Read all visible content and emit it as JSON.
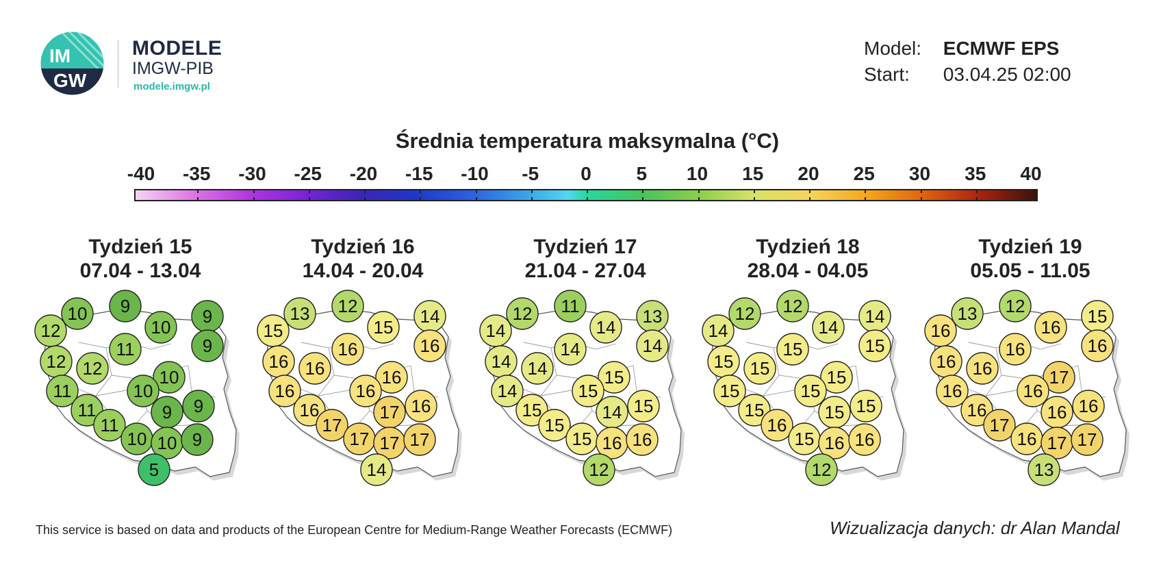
{
  "header": {
    "brand_title": "MODELE",
    "brand_subtitle": "IMGW-PIB",
    "brand_url": "modele.imgw.pl",
    "logo_text_top": "IM",
    "logo_text_bottom": "GW",
    "model_label": "Model:",
    "model_value": "ECMWF EPS",
    "start_label": "Start:",
    "start_value": "03.04.25 02:00"
  },
  "legend": {
    "title": "Średnia temperatura maksymalna (°C)",
    "ticks": [
      "-40",
      "-35",
      "-30",
      "-25",
      "-20",
      "-15",
      "-10",
      "-5",
      "0",
      "5",
      "10",
      "15",
      "20",
      "25",
      "30",
      "35",
      "40"
    ]
  },
  "weeks": [
    {
      "title": "Tydzień 15",
      "dates": "07.04 - 13.04",
      "values": [
        10,
        9,
        9,
        12,
        10,
        9,
        11,
        12,
        12,
        10,
        11,
        10,
        11,
        9,
        9,
        11,
        10,
        10,
        9,
        5
      ]
    },
    {
      "title": "Tydzień 16",
      "dates": "14.04 - 20.04",
      "values": [
        13,
        12,
        14,
        15,
        15,
        16,
        16,
        16,
        16,
        16,
        16,
        16,
        16,
        17,
        16,
        17,
        17,
        17,
        17,
        14
      ]
    },
    {
      "title": "Tydzień 17",
      "dates": "21.04 - 27.04",
      "values": [
        12,
        11,
        13,
        14,
        14,
        14,
        14,
        14,
        14,
        15,
        14,
        15,
        15,
        14,
        15,
        15,
        15,
        16,
        16,
        12
      ]
    },
    {
      "title": "Tydzień 18",
      "dates": "28.04 - 04.05",
      "values": [
        12,
        12,
        14,
        14,
        14,
        15,
        15,
        15,
        15,
        15,
        15,
        15,
        15,
        15,
        15,
        16,
        15,
        16,
        16,
        12
      ]
    },
    {
      "title": "Tydzień 19",
      "dates": "05.05 - 11.05",
      "values": [
        13,
        12,
        15,
        16,
        16,
        16,
        16,
        16,
        16,
        17,
        16,
        16,
        16,
        16,
        16,
        17,
        16,
        17,
        17,
        13
      ]
    }
  ],
  "footer": {
    "source": "This service is based on data and products of the European Centre for Medium-Range Weather Forecasts (ECMWF)",
    "credit": "Wizualizacja danych: dr Alan Mandal"
  }
}
